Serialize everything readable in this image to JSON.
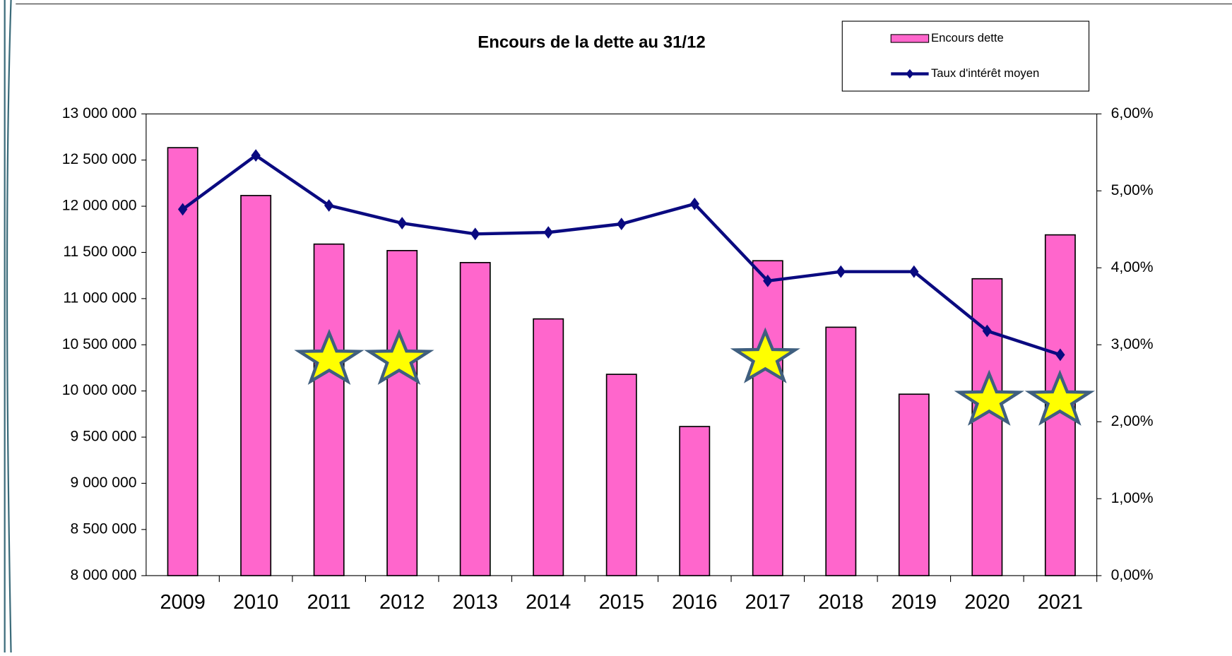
{
  "chart_data": {
    "type": "bar_line",
    "title": "Encours de la dette au 31/12",
    "categories": [
      "2009",
      "2010",
      "2011",
      "2012",
      "2013",
      "2014",
      "2015",
      "2016",
      "2017",
      "2018",
      "2019",
      "2020",
      "2021"
    ],
    "series": [
      {
        "name": "Encours dette",
        "type": "bar",
        "color": "#ff66cc",
        "values": [
          12634000,
          12116000,
          11590000,
          11520000,
          11390000,
          10780000,
          10180000,
          9615000,
          11410000,
          10690000,
          9965000,
          11215000,
          11690000
        ]
      },
      {
        "name": "Taux d'intérêt moyen",
        "type": "line",
        "axis": "y2",
        "color": "#0a0a80",
        "values": [
          4.76,
          5.46,
          4.81,
          4.58,
          4.44,
          4.46,
          4.57,
          4.83,
          3.83,
          3.95,
          3.95,
          3.18,
          2.87
        ]
      }
    ],
    "ylim": [
      8000000,
      13000000
    ],
    "yticks": [
      {
        "value": 8000000,
        "label": "8 000 000"
      },
      {
        "value": 8500000,
        "label": "8 500 000"
      },
      {
        "value": 9000000,
        "label": "9 000 000"
      },
      {
        "value": 9500000,
        "label": "9 500 000"
      },
      {
        "value": 10000000,
        "label": "10 000 000"
      },
      {
        "value": 10500000,
        "label": "10 500 000"
      },
      {
        "value": 11000000,
        "label": "11 000 000"
      },
      {
        "value": 11500000,
        "label": "11 500 000"
      },
      {
        "value": 12000000,
        "label": "12 000 000"
      },
      {
        "value": 12500000,
        "label": "12 500 000"
      },
      {
        "value": 13000000,
        "label": "13 000 000"
      }
    ],
    "y2lim": [
      0,
      6
    ],
    "y2ticks": [
      {
        "value": 0,
        "label": "0,00%"
      },
      {
        "value": 1,
        "label": "1,00%"
      },
      {
        "value": 2,
        "label": "2,00%"
      },
      {
        "value": 3,
        "label": "3,00%"
      },
      {
        "value": 4,
        "label": "4,00%"
      },
      {
        "value": 5,
        "label": "5,00%"
      },
      {
        "value": 6,
        "label": "6,00%"
      }
    ],
    "legend": "top-right"
  }
}
